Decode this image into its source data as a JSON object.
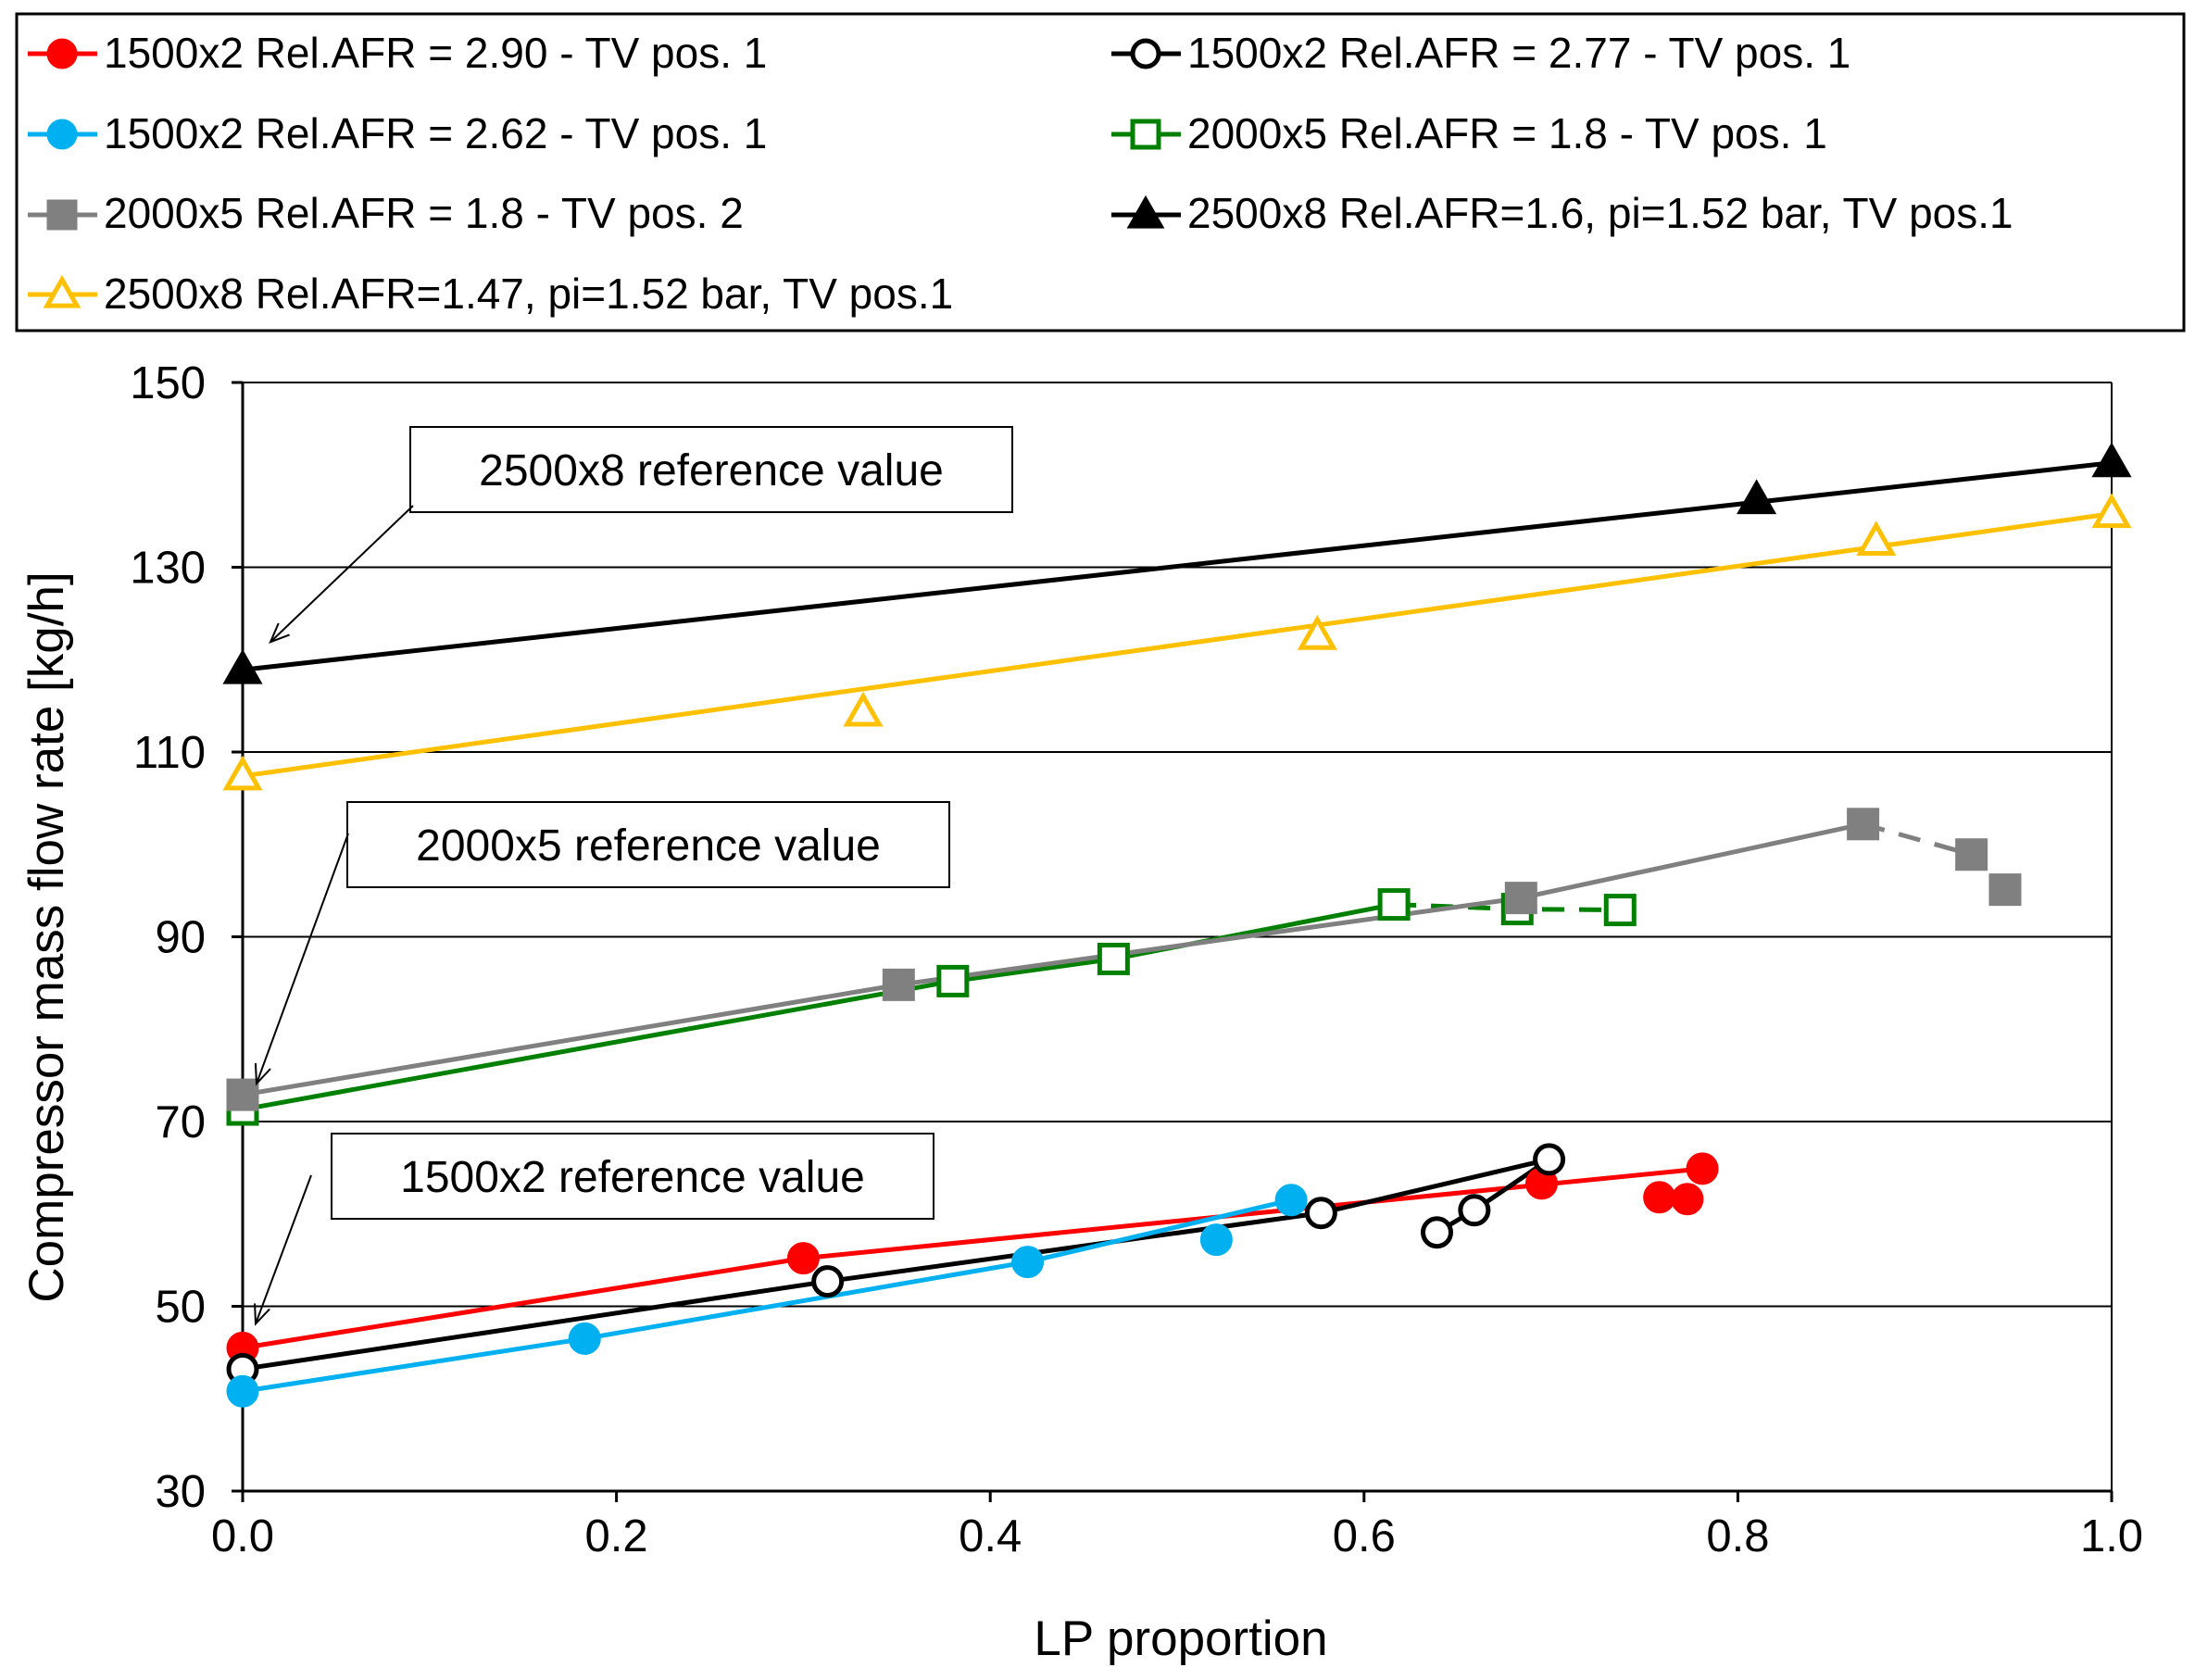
{
  "chart_data": {
    "type": "line",
    "title": "",
    "xlabel": "LP proportion",
    "ylabel": "Compressor mass flow rate [kg/h]",
    "xlim": [
      0.0,
      1.0
    ],
    "ylim": [
      30,
      150
    ],
    "xticks": [
      0.0,
      0.2,
      0.4,
      0.6,
      0.8,
      1.0
    ],
    "xtick_labels": [
      "0.0",
      "0.2",
      "0.4",
      "0.6",
      "0.8",
      "1.0"
    ],
    "yticks": [
      30,
      50,
      70,
      90,
      110,
      130,
      150
    ],
    "ytick_labels": [
      "30",
      "50",
      "70",
      "90",
      "110",
      "130",
      "150"
    ],
    "grid": "horizontal",
    "legend_position": "top",
    "series": [
      {
        "name": "1500x2 Rel.AFR = 2.90 - TV pos. 1",
        "color": "#ff0000",
        "marker": "circle",
        "filled": true,
        "x": [
          0.0,
          0.3,
          0.695,
          0.758,
          0.773,
          0.781
        ],
        "y": [
          45.5,
          55.2,
          63.3,
          61.8,
          61.6,
          64.9
        ],
        "solid_segments": [
          [
            0,
            1
          ],
          [
            1,
            5
          ]
        ],
        "dashed_segments": []
      },
      {
        "name": "1500x2 Rel.AFR = 2.77 - TV pos. 1",
        "color": "#000000",
        "marker": "circle",
        "filled": false,
        "x": [
          0.0,
          0.313,
          0.577,
          0.639,
          0.659,
          0.699
        ],
        "y": [
          43.2,
          52.7,
          60.1,
          58.0,
          60.4,
          65.9
        ],
        "solid_segments": [
          [
            0,
            1
          ],
          [
            1,
            2
          ],
          [
            2,
            5
          ],
          [
            3,
            4
          ],
          [
            4,
            5
          ]
        ],
        "dashed_segments": []
      },
      {
        "name": "1500x2 Rel.AFR = 2.62 - TV pos. 1",
        "color": "#00b0f0",
        "marker": "circle",
        "filled": true,
        "x": [
          0.0,
          0.183,
          0.42,
          0.521,
          0.561
        ],
        "y": [
          40.8,
          46.5,
          54.8,
          57.2,
          61.5
        ],
        "solid_segments": [
          [
            0,
            1
          ],
          [
            1,
            2
          ],
          [
            2,
            4
          ]
        ],
        "dashed_segments": []
      },
      {
        "name": "2000x5 Rel.AFR = 1.8 - TV pos. 1",
        "color": "#008000",
        "marker": "square",
        "filled": false,
        "x": [
          0.0,
          0.38,
          0.466,
          0.616,
          0.682,
          0.737
        ],
        "y": [
          71.3,
          85.2,
          87.6,
          93.5,
          93.0,
          92.9
        ],
        "solid_segments": [
          [
            0,
            1
          ],
          [
            1,
            2
          ],
          [
            2,
            3
          ]
        ],
        "dashed_segments": [
          [
            3,
            5
          ]
        ]
      },
      {
        "name": "2000x5 Rel.AFR = 1.8 - TV pos. 2",
        "color": "#808080",
        "marker": "square",
        "filled": true,
        "x": [
          0.0,
          0.351,
          0.684,
          0.867,
          0.925,
          0.943
        ],
        "y": [
          72.9,
          84.8,
          94.2,
          102.2,
          98.9,
          95.1
        ],
        "solid_segments": [
          [
            0,
            1
          ],
          [
            1,
            2
          ],
          [
            2,
            3
          ]
        ],
        "dashed_segments": [
          [
            3,
            5
          ]
        ]
      },
      {
        "name": "2500x8 Rel.AFR=1.6, pi=1.52 bar, TV pos.1",
        "color": "#000000",
        "marker": "triangle",
        "filled": true,
        "x": [
          0.0,
          0.81,
          1.0
        ],
        "y": [
          118.9,
          137.3,
          141.3
        ],
        "solid_segments": [
          [
            0,
            2
          ]
        ],
        "dashed_segments": []
      },
      {
        "name": "2500x8 Rel.AFR=1.47, pi=1.52 bar, TV pos.1",
        "color": "#ffc000",
        "marker": "triangle",
        "filled": false,
        "x": [
          0.0,
          0.332,
          0.575,
          0.874,
          1.0
        ],
        "y": [
          107.4,
          114.3,
          122.6,
          132.8,
          135.8
        ],
        "solid_segments": [
          [
            0,
            4
          ]
        ],
        "dashed_segments": []
      }
    ],
    "annotations": [
      {
        "text": "2500x8 reference value",
        "points_to": {
          "x": 0.0,
          "y": 118.9
        }
      },
      {
        "text": "2000x5 reference value",
        "points_to": {
          "x": 0.0,
          "y": 72.9
        }
      },
      {
        "text": "1500x2 reference value",
        "points_to": {
          "x": 0.0,
          "y": 45.5
        }
      }
    ]
  }
}
